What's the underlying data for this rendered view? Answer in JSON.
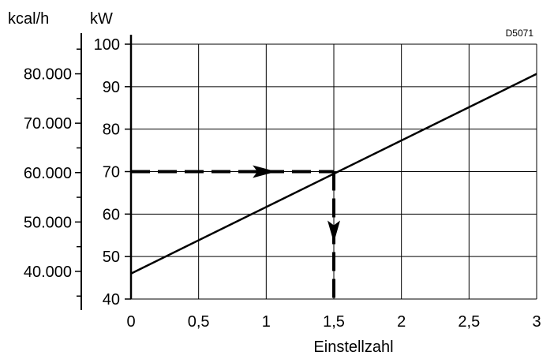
{
  "chart_data": {
    "type": "line",
    "code": "D5071",
    "xlabel": "Einstellzahl",
    "unit_left": "kcal/h",
    "unit_right": "kW",
    "x_ticks": [
      {
        "v": 0,
        "label": "0"
      },
      {
        "v": 0.5,
        "label": "0,5"
      },
      {
        "v": 1,
        "label": "1"
      },
      {
        "v": 1.5,
        "label": "1,5"
      },
      {
        "v": 2,
        "label": "2"
      },
      {
        "v": 2.5,
        "label": "2,5"
      },
      {
        "v": 3,
        "label": "3"
      }
    ],
    "kw_ticks": [
      {
        "v": 40,
        "label": "40"
      },
      {
        "v": 50,
        "label": "50"
      },
      {
        "v": 60,
        "label": "60"
      },
      {
        "v": 70,
        "label": "70"
      },
      {
        "v": 80,
        "label": "80"
      },
      {
        "v": 90,
        "label": "90"
      },
      {
        "v": 100,
        "label": "100"
      }
    ],
    "kcal_ticks": [
      {
        "v": 40000,
        "label": "40.000"
      },
      {
        "v": 50000,
        "label": "50.000"
      },
      {
        "v": 60000,
        "label": "60.000"
      },
      {
        "v": 70000,
        "label": "70.000"
      },
      {
        "v": 80000,
        "label": "80.000"
      }
    ],
    "xlim": [
      0,
      3
    ],
    "ylim": [
      40,
      100
    ],
    "grid": true,
    "series": [
      {
        "x": [
          0,
          3
        ],
        "y": [
          46,
          93
        ]
      }
    ],
    "example": {
      "x": 1.5,
      "y": 70
    }
  }
}
